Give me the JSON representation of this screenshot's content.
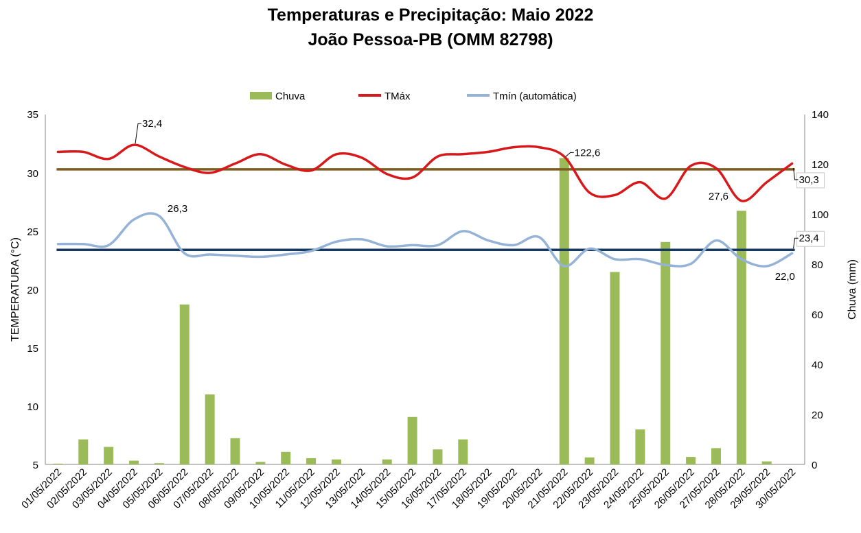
{
  "chart_data": {
    "type": "bar+line",
    "title": "Temperaturas e Precipitação: Maio 2022",
    "subtitle": "João Pessoa-PB (OMM 82798)",
    "ylabel_left": "TEMPERATURA (°C)",
    "ylabel_right": "Chuva (mm)",
    "ylim_left": [
      5,
      35
    ],
    "ylim_right": [
      0,
      140
    ],
    "yticks_left": [
      "35",
      "30",
      "25",
      "20",
      "15",
      "10",
      "5"
    ],
    "yticks_right": [
      "140",
      "120",
      "100",
      "80",
      "60",
      "40",
      "20",
      "0"
    ],
    "categories": [
      "01/05/2022",
      "02/05/2022",
      "03/05/2022",
      "04/05/2022",
      "05/05/2022",
      "06/05/2022",
      "07/05/2022",
      "08/05/2022",
      "09/05/2022",
      "10/05/2022",
      "11/05/2022",
      "12/05/2022",
      "13/05/2022",
      "14/05/2022",
      "15/05/2022",
      "16/05/2022",
      "17/05/2022",
      "18/05/2022",
      "19/05/2022",
      "20/05/2022",
      "21/05/2022",
      "22/05/2022",
      "23/05/2022",
      "24/05/2022",
      "25/05/2022",
      "26/05/2022",
      "27/05/2022",
      "28/05/2022",
      "29/05/2022",
      "30/05/2022"
    ],
    "legend": [
      "Chuva",
      "TMáx",
      "Tmín (automática)"
    ],
    "series": [
      {
        "name": "Chuva",
        "axis": "right",
        "color": "#9bbb59",
        "values": [
          0.3,
          10,
          7,
          1.5,
          0.5,
          64,
          28,
          10.5,
          1,
          5,
          2.5,
          2,
          0,
          2,
          19,
          6,
          10,
          0,
          0,
          0,
          122.6,
          2.8,
          77,
          14,
          89,
          3,
          6.5,
          101.5,
          1.2,
          0
        ]
      },
      {
        "name": "TMáx",
        "axis": "left",
        "color": "#d7191c",
        "values": [
          31.8,
          31.8,
          31.2,
          32.4,
          31.4,
          30.5,
          30.0,
          30.8,
          31.6,
          30.7,
          30.2,
          31.6,
          31.3,
          29.9,
          29.6,
          31.4,
          31.6,
          31.8,
          32.2,
          32.2,
          31.4,
          28.3,
          28.1,
          29.2,
          27.8,
          30.6,
          30.4,
          27.6,
          29.2,
          30.8
        ]
      },
      {
        "name": "Tmín (automática)",
        "axis": "left",
        "color": "#95b3d7",
        "values": [
          23.9,
          23.9,
          23.8,
          26.0,
          26.3,
          23.1,
          23.0,
          22.9,
          22.8,
          23.0,
          23.3,
          24.1,
          24.3,
          23.7,
          23.8,
          23.8,
          25.0,
          24.2,
          23.8,
          24.5,
          22.0,
          23.5,
          22.6,
          22.6,
          22.1,
          22.2,
          24.2,
          22.6,
          22.0,
          23.1
        ]
      }
    ],
    "reference_lines": [
      {
        "name": "TMáx média",
        "value": 30.3,
        "color": "#7f5c1e"
      },
      {
        "name": "Tmín média",
        "value": 23.4,
        "color": "#17375e"
      }
    ],
    "data_labels": [
      {
        "text": "32,4",
        "series": "TMáx",
        "index": 3
      },
      {
        "text": "26,3",
        "series": "Tmín (automática)",
        "index": 4
      },
      {
        "text": "122,6",
        "series": "Chuva",
        "index": 20
      },
      {
        "text": "27,6",
        "series": "TMáx",
        "index": 27
      },
      {
        "text": "22,0",
        "series": "Tmín (automática)",
        "index": 28
      },
      {
        "text": "30,3",
        "series": "TMáx média",
        "index": 29
      },
      {
        "text": "23,4",
        "series": "Tmín média",
        "index": 29
      }
    ]
  }
}
